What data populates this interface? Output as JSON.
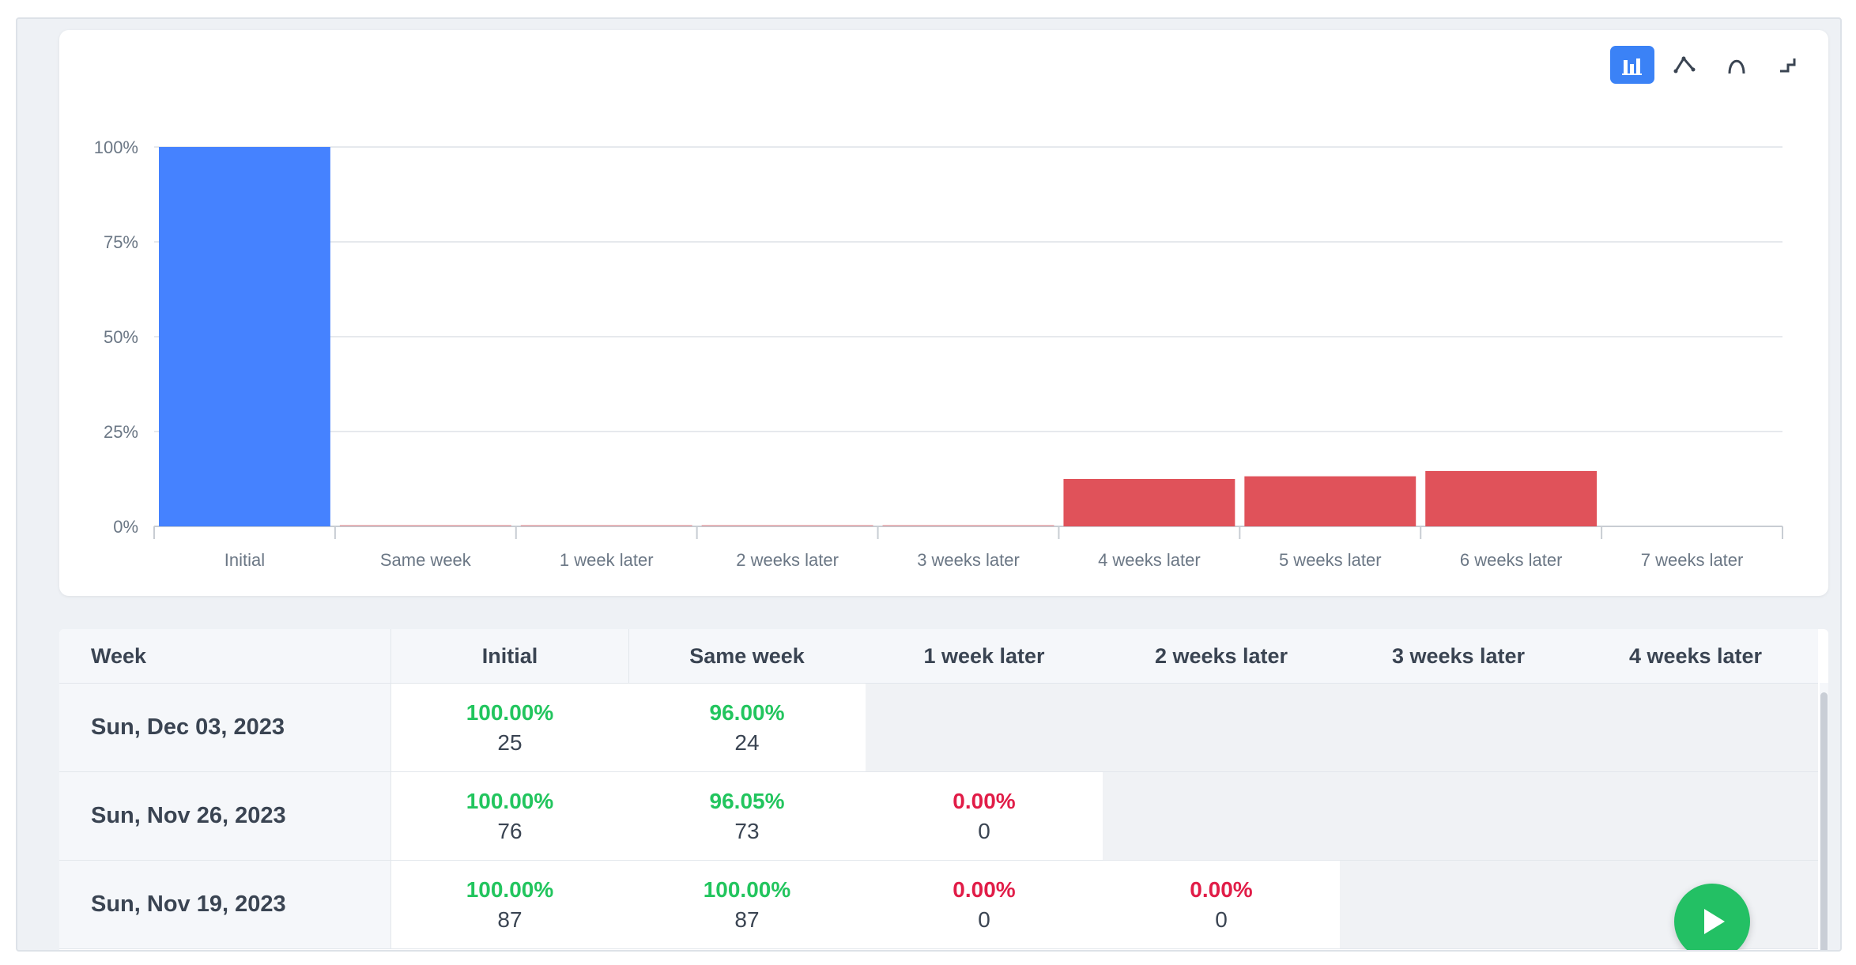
{
  "chart_toolbar": {
    "buttons": [
      {
        "icon": "bar-chart-icon",
        "active": true
      },
      {
        "icon": "line-chart-icon",
        "active": false
      },
      {
        "icon": "curve-chart-icon",
        "active": false
      },
      {
        "icon": "step-chart-icon",
        "active": false
      }
    ]
  },
  "chart_data": {
    "type": "bar",
    "categories": [
      "Initial",
      "Same week",
      "1 week later",
      "2 weeks later",
      "3 weeks later",
      "4 weeks later",
      "5 weeks later",
      "6 weeks later",
      "7 weeks later"
    ],
    "values": [
      100,
      0,
      0,
      0,
      0,
      12.5,
      13.2,
      14.6,
      null
    ],
    "y_ticks": [
      "0%",
      "25%",
      "50%",
      "75%",
      "100%"
    ],
    "ylim": [
      0,
      100
    ],
    "grid": true,
    "colors": {
      "baseline": "#4582ff",
      "negative": "#e0525a"
    },
    "bar_color_role": [
      "baseline",
      "negative",
      "negative",
      "negative",
      "negative",
      "negative",
      "negative",
      "negative",
      "negative"
    ]
  },
  "table": {
    "columns": [
      "Week",
      "Initial",
      "Same week",
      "1 week later",
      "2 weeks later",
      "3 weeks later",
      "4 weeks later"
    ],
    "rows": [
      {
        "week": "Sun, Dec 03, 2023",
        "cells": [
          {
            "pct": "100.00%",
            "count": "25",
            "trend": "up"
          },
          {
            "pct": "96.00%",
            "count": "24",
            "trend": "up"
          }
        ]
      },
      {
        "week": "Sun, Nov 26, 2023",
        "cells": [
          {
            "pct": "100.00%",
            "count": "76",
            "trend": "up"
          },
          {
            "pct": "96.05%",
            "count": "73",
            "trend": "up"
          },
          {
            "pct": "0.00%",
            "count": "0",
            "trend": "down"
          }
        ]
      },
      {
        "week": "Sun, Nov 19, 2023",
        "cells": [
          {
            "pct": "100.00%",
            "count": "87",
            "trend": "up"
          },
          {
            "pct": "100.00%",
            "count": "87",
            "trend": "up"
          },
          {
            "pct": "0.00%",
            "count": "0",
            "trend": "down"
          },
          {
            "pct": "0.00%",
            "count": "0",
            "trend": "down"
          }
        ]
      }
    ]
  },
  "play_button": {
    "icon": "play-icon"
  },
  "colors": {
    "positive": "#22c55e",
    "negative": "#e11d48",
    "accent": "#3b82f6",
    "play": "#23c064"
  }
}
